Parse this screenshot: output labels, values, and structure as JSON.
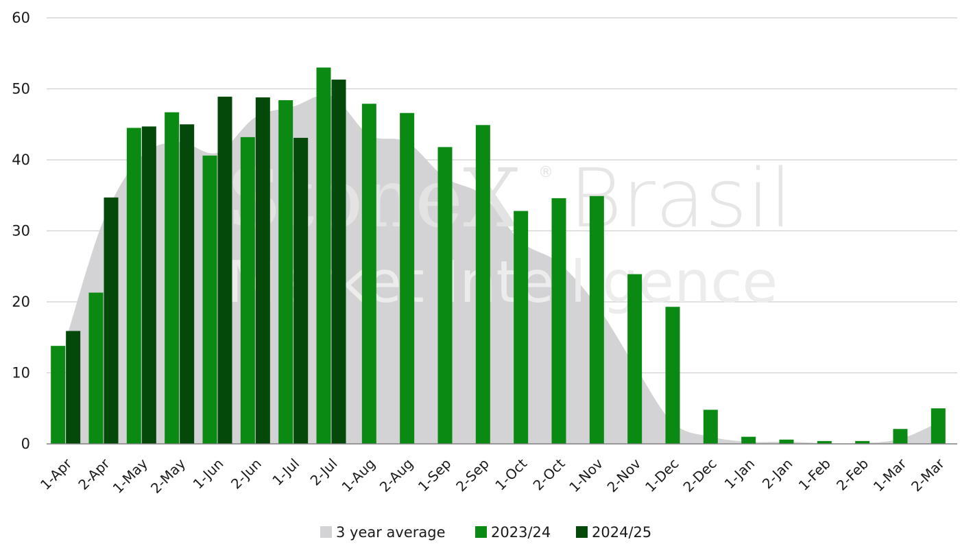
{
  "colors": {
    "average": "#d3d3d5",
    "series_2023": "#0a8a12",
    "series_2024": "#04480a"
  },
  "watermark": {
    "brand": "StoneX",
    "region": "Brasil",
    "tagline": "Market Intelligence",
    "reg_mark": "®"
  },
  "legend": {
    "average_label": "3 year average",
    "s2023_label": "2023/24",
    "s2024_label": "2024/25"
  },
  "chart_data": {
    "type": "bar",
    "title": "",
    "xlabel": "",
    "ylabel": "",
    "ylim": [
      0,
      60
    ],
    "yticks": [
      0,
      10,
      20,
      30,
      40,
      50,
      60
    ],
    "grid": true,
    "legend_position": "bottom",
    "categories": [
      "1-Apr",
      "2-Apr",
      "1-May",
      "2-May",
      "1-Jun",
      "2-Jun",
      "1-Jul",
      "2-Jul",
      "1-Aug",
      "2-Aug",
      "1-Sep",
      "2-Sep",
      "1-Oct",
      "2-Oct",
      "1-Nov",
      "2-Nov",
      "1-Dec",
      "2-Dec",
      "1-Jan",
      "2-Jan",
      "1-Feb",
      "2-Feb",
      "1-Mar",
      "2-Mar"
    ],
    "area_series": {
      "name": "3 year average",
      "values": [
        14.5,
        31.5,
        40.5,
        42.5,
        41.0,
        46.0,
        47.5,
        49.0,
        43.5,
        42.5,
        37.5,
        35.0,
        28.5,
        25.5,
        19.5,
        11.0,
        3.0,
        1.0,
        0.3,
        0.3,
        0.1,
        0.1,
        0.7,
        3.0
      ]
    },
    "series": [
      {
        "name": "2023/24",
        "values": [
          13.8,
          21.3,
          44.5,
          46.7,
          40.6,
          43.2,
          48.4,
          53.0,
          47.9,
          46.6,
          41.8,
          44.9,
          32.8,
          34.6,
          34.9,
          23.9,
          19.3,
          4.8,
          1.0,
          0.6,
          0.4,
          0.4,
          2.1,
          5.0
        ]
      },
      {
        "name": "2024/25",
        "values": [
          15.9,
          34.7,
          44.7,
          45.0,
          48.9,
          48.8,
          43.1,
          51.3,
          null,
          null,
          null,
          null,
          null,
          null,
          null,
          null,
          null,
          null,
          null,
          null,
          null,
          null,
          null,
          null
        ]
      }
    ]
  }
}
